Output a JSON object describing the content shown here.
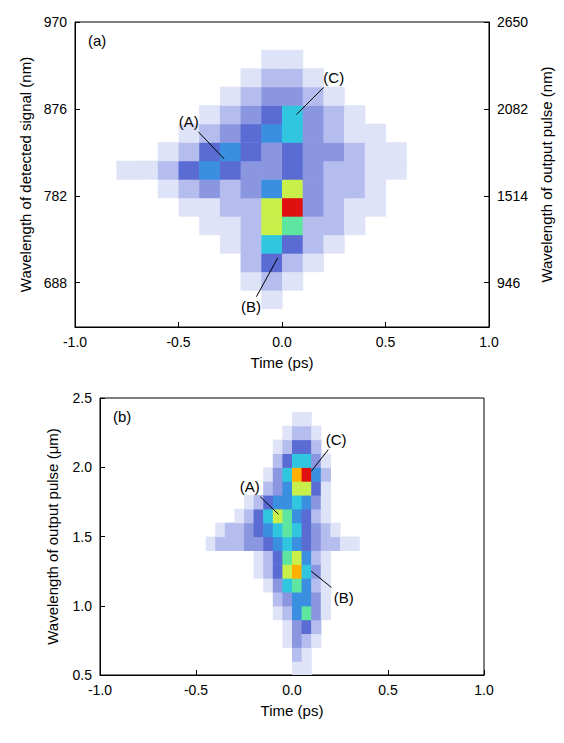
{
  "chart_data": [
    {
      "type": "heatmap",
      "panel_label": "(a)",
      "grid": false,
      "xlabel": "Time (ps)",
      "ylabel": "Wavelength of detected signal (nm)",
      "y2label": "Wavelength of output pulse (nm)",
      "xlim": [
        -1,
        1
      ],
      "xticks": [
        {
          "value": -1,
          "label": "-1.0"
        },
        -0.5,
        {
          "value": 0,
          "label": "0.0"
        },
        0.5,
        {
          "value": 1,
          "label": "1.0"
        }
      ],
      "ylim": [
        640,
        970
      ],
      "yticks": [
        688,
        782,
        876,
        970
      ],
      "y2lim": [
        656,
        2650
      ],
      "y2ticks": [
        946,
        1514,
        2082,
        2650
      ],
      "x_bins": [
        -0.8,
        -0.7,
        -0.6,
        -0.5,
        -0.4,
        -0.3,
        -0.2,
        -0.1,
        0,
        0.1,
        0.2,
        0.3,
        0.4,
        0.5,
        0.6,
        0.7
      ],
      "y_bins": [
        660,
        680,
        700,
        720,
        740,
        760,
        780,
        800,
        820,
        840,
        860,
        880,
        900,
        920,
        940
      ],
      "z": [
        [
          0,
          0,
          0,
          0,
          0,
          0,
          0,
          1,
          0,
          0,
          0,
          0,
          0,
          0,
          0
        ],
        [
          0,
          0,
          0,
          0,
          0,
          0,
          1,
          2,
          1,
          0,
          0,
          0,
          0,
          0,
          0
        ],
        [
          0,
          0,
          0,
          0,
          0,
          0,
          2,
          4,
          2,
          1,
          0,
          0,
          0,
          0,
          0
        ],
        [
          0,
          0,
          0,
          0,
          0,
          1,
          2,
          6,
          4,
          2,
          1,
          0,
          0,
          0,
          0
        ],
        [
          0,
          0,
          0,
          0,
          1,
          1,
          2,
          8,
          7,
          2,
          2,
          1,
          0,
          0,
          0
        ],
        [
          0,
          0,
          0,
          1,
          1,
          2,
          2,
          8,
          10,
          3,
          2,
          1,
          1,
          0,
          0
        ],
        [
          0,
          0,
          1,
          2,
          3,
          2,
          3,
          5,
          8,
          3,
          2,
          2,
          1,
          0,
          0
        ],
        [
          1,
          1,
          2,
          4,
          5,
          4,
          3,
          3,
          4,
          3,
          2,
          2,
          1,
          1,
          0
        ],
        [
          0,
          0,
          1,
          2,
          4,
          5,
          4,
          3,
          4,
          3,
          3,
          2,
          1,
          1,
          0
        ],
        [
          0,
          0,
          0,
          1,
          2,
          3,
          4,
          5,
          6,
          3,
          2,
          1,
          1,
          0,
          0
        ],
        [
          0,
          0,
          0,
          0,
          1,
          2,
          3,
          4,
          6,
          3,
          2,
          1,
          0,
          0,
          0
        ],
        [
          0,
          0,
          0,
          0,
          0,
          1,
          2,
          3,
          3,
          2,
          1,
          0,
          0,
          0,
          0
        ],
        [
          0,
          0,
          0,
          0,
          0,
          0,
          1,
          2,
          2,
          1,
          0,
          0,
          0,
          0,
          0
        ],
        [
          0,
          0,
          0,
          0,
          0,
          0,
          0,
          1,
          1,
          0,
          0,
          0,
          0,
          0,
          0
        ]
      ],
      "annotations": [
        {
          "text": "(A)",
          "x": -0.45,
          "y": 862,
          "x_to": -0.28,
          "y_to": 822
        },
        {
          "text": "(B)",
          "x": -0.15,
          "y": 662,
          "x_to": -0.02,
          "y_to": 715
        },
        {
          "text": "(C)",
          "x": 0.25,
          "y": 910,
          "x_to": 0.07,
          "y_to": 870
        }
      ]
    },
    {
      "type": "heatmap",
      "panel_label": "(b)",
      "grid": false,
      "xlabel": "Time (ps)",
      "ylabel": "Wavelength of output pulse (μm)",
      "xlim": [
        -1,
        1
      ],
      "xticks": [
        {
          "value": -1,
          "label": "-1.0"
        },
        -0.5,
        {
          "value": 0,
          "label": "0.0"
        },
        0.5,
        {
          "value": 1,
          "label": "1.0"
        }
      ],
      "ylim": [
        0.5,
        2.5
      ],
      "yticks": [
        0.5,
        {
          "value": 1,
          "label": "1.0"
        },
        1.5,
        {
          "value": 2,
          "label": "2.0"
        },
        2.5
      ],
      "x_bins": [
        -0.45,
        -0.4,
        -0.35,
        -0.3,
        -0.25,
        -0.2,
        -0.15,
        -0.1,
        -0.05,
        0,
        0.05,
        0.1,
        0.15,
        0.2,
        0.25,
        0.3,
        0.35
      ],
      "y_bins": [
        0.5,
        0.6,
        0.7,
        0.8,
        0.9,
        1.0,
        1.1,
        1.2,
        1.3,
        1.4,
        1.5,
        1.6,
        1.7,
        1.8,
        1.9,
        2.0,
        2.1,
        2.2,
        2.3,
        2.4
      ],
      "z": [
        [
          0,
          0,
          0,
          0,
          0,
          0,
          0,
          0,
          0,
          1,
          1,
          0,
          0,
          0,
          0,
          0
        ],
        [
          0,
          0,
          0,
          0,
          0,
          0,
          0,
          0,
          0,
          2,
          1,
          0,
          0,
          0,
          0,
          0
        ],
        [
          0,
          0,
          0,
          0,
          0,
          0,
          0,
          0,
          1,
          3,
          2,
          1,
          0,
          0,
          0,
          0
        ],
        [
          0,
          0,
          0,
          0,
          0,
          0,
          0,
          0,
          1,
          3,
          4,
          2,
          0,
          0,
          0,
          0
        ],
        [
          0,
          0,
          0,
          0,
          0,
          0,
          0,
          1,
          2,
          5,
          7,
          3,
          1,
          0,
          0,
          0
        ],
        [
          0,
          0,
          0,
          0,
          0,
          0,
          0,
          2,
          3,
          5,
          5,
          3,
          1,
          0,
          0,
          0
        ],
        [
          0,
          0,
          0,
          0,
          0,
          0,
          1,
          3,
          6,
          7,
          5,
          2,
          1,
          0,
          0,
          0
        ],
        [
          0,
          0,
          0,
          0,
          0,
          1,
          2,
          4,
          8,
          9,
          6,
          3,
          1,
          0,
          0,
          0
        ],
        [
          0,
          0,
          0,
          0,
          0,
          1,
          2,
          4,
          7,
          8,
          5,
          2,
          1,
          0,
          0,
          0
        ],
        [
          1,
          2,
          2,
          2,
          3,
          3,
          4,
          5,
          6,
          5,
          4,
          3,
          2,
          2,
          1,
          1
        ],
        [
          0,
          1,
          2,
          2,
          3,
          4,
          5,
          6,
          7,
          6,
          4,
          3,
          2,
          1,
          0,
          0
        ],
        [
          0,
          0,
          0,
          1,
          2,
          4,
          6,
          8,
          7,
          5,
          4,
          2,
          1,
          0,
          0,
          0
        ],
        [
          0,
          0,
          0,
          0,
          1,
          2,
          4,
          5,
          5,
          6,
          5,
          3,
          1,
          0,
          0,
          0
        ],
        [
          0,
          0,
          0,
          0,
          0,
          0,
          2,
          3,
          5,
          8,
          8,
          4,
          1,
          0,
          0,
          0
        ],
        [
          0,
          0,
          0,
          0,
          0,
          0,
          1,
          3,
          6,
          9,
          10,
          5,
          2,
          0,
          0,
          0
        ],
        [
          0,
          0,
          0,
          0,
          0,
          0,
          0,
          2,
          4,
          6,
          6,
          3,
          1,
          0,
          0,
          0
        ],
        [
          0,
          0,
          0,
          0,
          0,
          0,
          0,
          1,
          2,
          4,
          4,
          2,
          0,
          0,
          0,
          0
        ],
        [
          0,
          0,
          0,
          0,
          0,
          0,
          0,
          0,
          1,
          2,
          2,
          1,
          0,
          0,
          0,
          0
        ],
        [
          0,
          0,
          0,
          0,
          0,
          0,
          0,
          0,
          0,
          1,
          1,
          0,
          0,
          0,
          0,
          0
        ]
      ],
      "annotations": [
        {
          "text": "(A)",
          "x": -0.22,
          "y": 1.86,
          "x_to": -0.07,
          "y_to": 1.66
        },
        {
          "text": "(B)",
          "x": 0.27,
          "y": 1.06,
          "x_to": 0.1,
          "y_to": 1.25
        },
        {
          "text": "(C)",
          "x": 0.23,
          "y": 2.2,
          "x_to": 0.1,
          "y_to": 1.97
        }
      ]
    }
  ]
}
